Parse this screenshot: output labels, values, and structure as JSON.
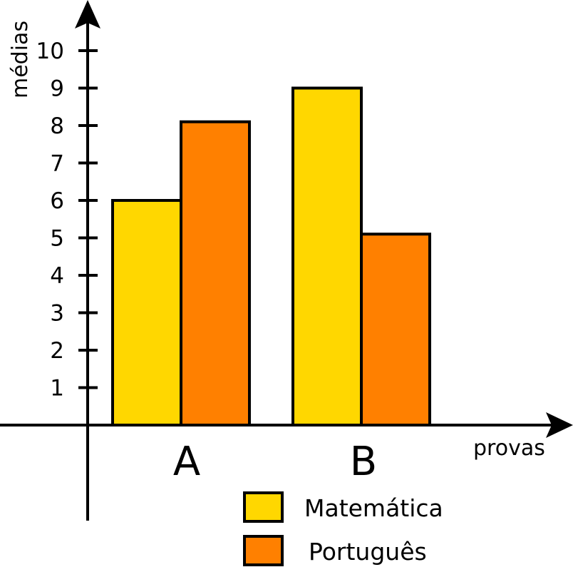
{
  "chart_data": {
    "type": "bar",
    "xlabel": "provas",
    "ylabel": "médias",
    "categories": [
      "A",
      "B"
    ],
    "series": [
      {
        "name": "Matemática",
        "color": "#FFD700",
        "values": [
          6,
          9
        ]
      },
      {
        "name": "Português",
        "color": "#FF8000",
        "values": [
          8.1,
          5.1
        ]
      }
    ],
    "yticks": [
      1,
      2,
      3,
      4,
      5,
      6,
      7,
      8,
      9,
      10
    ],
    "ylim": [
      0,
      10
    ],
    "grid": false,
    "legend": "bottom-center"
  }
}
